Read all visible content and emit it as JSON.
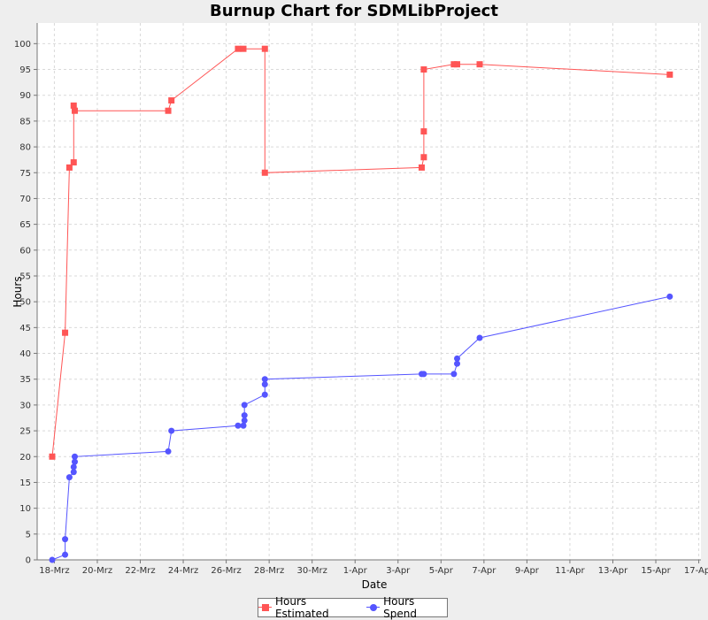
{
  "chart_data": {
    "type": "line",
    "title": "Burnup Chart for SDMLibProject",
    "xlabel": "Date",
    "ylabel": "Hours",
    "ylim": [
      0,
      104
    ],
    "xlim": [
      -0.8,
      30.1
    ],
    "yticks": [
      0,
      5,
      10,
      15,
      20,
      25,
      30,
      35,
      40,
      45,
      50,
      55,
      60,
      65,
      70,
      75,
      80,
      85,
      90,
      95,
      100
    ],
    "xticks": [
      {
        "pos": 0,
        "label": "18-Mrz"
      },
      {
        "pos": 2,
        "label": "20-Mrz"
      },
      {
        "pos": 4,
        "label": "22-Mrz"
      },
      {
        "pos": 6,
        "label": "24-Mrz"
      },
      {
        "pos": 8,
        "label": "26-Mrz"
      },
      {
        "pos": 10,
        "label": "28-Mrz"
      },
      {
        "pos": 12,
        "label": "30-Mrz"
      },
      {
        "pos": 14,
        "label": "1-Apr"
      },
      {
        "pos": 16,
        "label": "3-Apr"
      },
      {
        "pos": 18,
        "label": "5-Apr"
      },
      {
        "pos": 20,
        "label": "7-Apr"
      },
      {
        "pos": 22,
        "label": "9-Apr"
      },
      {
        "pos": 24,
        "label": "11-Apr"
      },
      {
        "pos": 26,
        "label": "13-Apr"
      },
      {
        "pos": 28,
        "label": "15-Apr"
      },
      {
        "pos": 30,
        "label": "17-Apr"
      }
    ],
    "grid": true,
    "legend_position": "bottom",
    "series": [
      {
        "name": "Hours Estimated",
        "color": "#ff5555",
        "marker": "square",
        "points": [
          [
            -0.1,
            20
          ],
          [
            0.5,
            44
          ],
          [
            0.7,
            76
          ],
          [
            0.9,
            77
          ],
          [
            0.9,
            88
          ],
          [
            0.95,
            87
          ],
          [
            5.3,
            87
          ],
          [
            5.45,
            89
          ],
          [
            8.55,
            99
          ],
          [
            8.8,
            99
          ],
          [
            9.8,
            99
          ],
          [
            9.8,
            75
          ],
          [
            17.1,
            76
          ],
          [
            17.2,
            78
          ],
          [
            17.2,
            83
          ],
          [
            17.2,
            95
          ],
          [
            18.6,
            96
          ],
          [
            18.75,
            96
          ],
          [
            19.8,
            96
          ],
          [
            28.65,
            94
          ]
        ]
      },
      {
        "name": "Hours Spend",
        "color": "#5555ff",
        "marker": "circle",
        "points": [
          [
            -0.1,
            0
          ],
          [
            0.5,
            1
          ],
          [
            0.5,
            4
          ],
          [
            0.7,
            16
          ],
          [
            0.9,
            17
          ],
          [
            0.9,
            18
          ],
          [
            0.95,
            19
          ],
          [
            0.95,
            20
          ],
          [
            5.3,
            21
          ],
          [
            5.45,
            25
          ],
          [
            8.55,
            26
          ],
          [
            8.8,
            26
          ],
          [
            8.85,
            27
          ],
          [
            8.85,
            28
          ],
          [
            8.85,
            30
          ],
          [
            9.8,
            32
          ],
          [
            9.8,
            34
          ],
          [
            9.8,
            35
          ],
          [
            17.1,
            36
          ],
          [
            17.2,
            36
          ],
          [
            18.6,
            36
          ],
          [
            18.75,
            38
          ],
          [
            18.75,
            39
          ],
          [
            19.8,
            43
          ],
          [
            28.65,
            51
          ]
        ]
      }
    ]
  }
}
